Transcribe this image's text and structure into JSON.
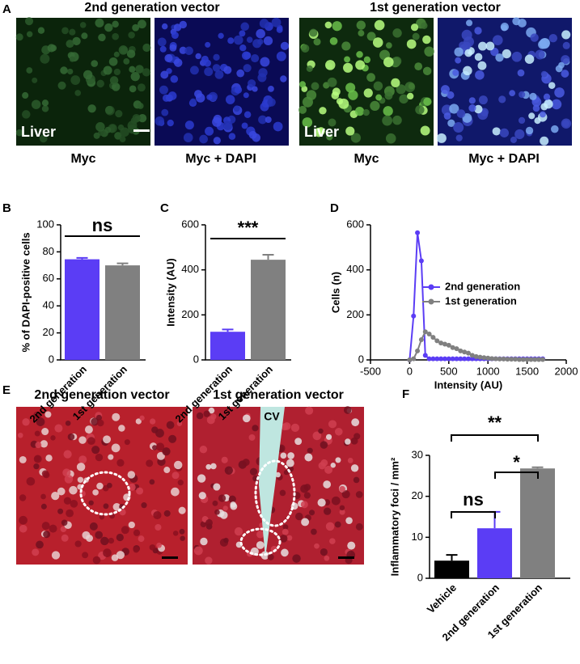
{
  "panel_labels": [
    "A",
    "B",
    "C",
    "D",
    "E",
    "F"
  ],
  "panel_a": {
    "titles": [
      "2nd generation vector",
      "1st generation vector"
    ],
    "tissue": [
      "Liver",
      "Liver"
    ],
    "captions": [
      "Myc",
      "Myc + DAPI",
      "Myc",
      "Myc + DAPI"
    ]
  },
  "panel_e": {
    "titles": [
      "2nd generation vector",
      "1st generation vector"
    ],
    "vessel": "CV"
  },
  "chart_data": [
    {
      "type": "bar",
      "ylabel": "% of DAPI-positive cells",
      "categories": [
        "2nd generation",
        "1st generation"
      ],
      "values": [
        74.5,
        70
      ],
      "errors": [
        1,
        1.5
      ],
      "colors": [
        "#5b3df5",
        "#808080"
      ],
      "ylim": [
        0,
        100
      ],
      "yticks": [
        0,
        20,
        40,
        60,
        80,
        100
      ],
      "annotations": [
        "ns"
      ]
    },
    {
      "type": "bar",
      "ylabel": "Intensity (AU)",
      "categories": [
        "2nd generation",
        "1st generation"
      ],
      "values": [
        125,
        445
      ],
      "errors": [
        10,
        22
      ],
      "colors": [
        "#5b3df5",
        "#808080"
      ],
      "ylim": [
        0,
        600
      ],
      "yticks": [
        0,
        200,
        400,
        600
      ],
      "annotations": [
        "***"
      ]
    },
    {
      "type": "line",
      "xlabel": "Intensity (AU)",
      "ylabel": "Cells (n)",
      "x": [
        0,
        50,
        100,
        150,
        200,
        250,
        300,
        350,
        400,
        450,
        500,
        550,
        600,
        650,
        700,
        750,
        800,
        850,
        900,
        950,
        1000,
        1050,
        1100,
        1150,
        1200,
        1250,
        1300,
        1350,
        1400,
        1450,
        1500,
        1550,
        1600,
        1650,
        1700
      ],
      "series": [
        {
          "name": "2nd generation",
          "color": "#5b3df5",
          "values": [
            0,
            195,
            565,
            440,
            20,
            5,
            5,
            5,
            5,
            5,
            5,
            5,
            5,
            5,
            5,
            5,
            5,
            5,
            5,
            5,
            5,
            5,
            5,
            5,
            5,
            5,
            5,
            5,
            5,
            5,
            5,
            5,
            5,
            5,
            5
          ]
        },
        {
          "name": "1st generation",
          "color": "#808080",
          "values": [
            0,
            5,
            40,
            90,
            125,
            115,
            100,
            85,
            75,
            70,
            65,
            55,
            50,
            40,
            35,
            30,
            20,
            15,
            12,
            10,
            8,
            6,
            5,
            4,
            4,
            3,
            3,
            3,
            2,
            2,
            2,
            2,
            2,
            2,
            2
          ]
        }
      ],
      "xlim": [
        -500,
        2000
      ],
      "xticks": [
        -500,
        0,
        500,
        1000,
        1500,
        2000
      ],
      "ylim": [
        0,
        600
      ],
      "yticks": [
        0,
        200,
        400,
        600
      ],
      "legend": "right"
    },
    {
      "type": "bar",
      "ylabel": "Inflammatory foci / mm²",
      "categories": [
        "Vehicle",
        "2nd generation",
        "1st generation"
      ],
      "values": [
        4.3,
        12.2,
        26.8
      ],
      "errors": [
        1.4,
        4,
        0.3
      ],
      "colors": [
        "#000000",
        "#5b3df5",
        "#808080"
      ],
      "ylim": [
        0,
        30
      ],
      "yticks": [
        0,
        10,
        20,
        30
      ],
      "annotations": [
        "ns",
        "*",
        "**"
      ]
    }
  ]
}
